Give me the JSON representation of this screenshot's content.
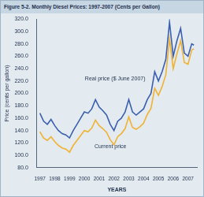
{
  "chart_data": {
    "type": "line",
    "title": "Figure 5-2.  Monthly Diesel Prices: 1997-2007 (Cents per Gallon)",
    "x_label": "YEARS",
    "y_label": "Price (cents per gallon)",
    "annotations": [
      "Real price ($ June 2007)",
      "Current price"
    ],
    "series": [
      {
        "name": "Real price ($ June 2007)",
        "color": "#3b5fae",
        "x": [
          1997,
          1997.25,
          1997.5,
          1997.75,
          1998,
          1998.25,
          1998.5,
          1998.75,
          1999,
          1999.25,
          1999.5,
          1999.75,
          2000,
          2000.25,
          2000.5,
          2000.75,
          2001,
          2001.25,
          2001.5,
          2001.75,
          2002,
          2002.25,
          2002.5,
          2002.75,
          2003,
          2003.25,
          2003.5,
          2003.75,
          2004,
          2004.25,
          2004.5,
          2004.75,
          2005,
          2005.25,
          2005.5,
          2005.75,
          2006,
          2006.25,
          2006.5,
          2006.75,
          2007,
          2007.25,
          2007.4
        ],
        "values": [
          168,
          155,
          150,
          158,
          148,
          140,
          135,
          133,
          128,
          140,
          150,
          160,
          170,
          168,
          175,
          190,
          178,
          172,
          165,
          150,
          140,
          155,
          160,
          170,
          190,
          170,
          165,
          170,
          175,
          190,
          200,
          235,
          220,
          235,
          255,
          315,
          260,
          285,
          305,
          265,
          260,
          280,
          278
        ]
      },
      {
        "name": "Current price",
        "color": "#f0b232",
        "x": [
          1997,
          1997.25,
          1997.5,
          1997.75,
          1998,
          1998.25,
          1998.5,
          1998.75,
          1999,
          1999.25,
          1999.5,
          1999.75,
          2000,
          2000.25,
          2000.5,
          2000.75,
          2001,
          2001.25,
          2001.5,
          2001.75,
          2002,
          2002.25,
          2002.5,
          2002.75,
          2003,
          2003.25,
          2003.5,
          2003.75,
          2004,
          2004.25,
          2004.5,
          2004.75,
          2005,
          2005.25,
          2005.5,
          2005.75,
          2006,
          2006.25,
          2006.5,
          2006.75,
          2007,
          2007.25,
          2007.4
        ],
        "values": [
          138,
          128,
          124,
          130,
          122,
          116,
          112,
          110,
          105,
          116,
          124,
          132,
          140,
          138,
          144,
          157,
          148,
          143,
          137,
          125,
          117,
          130,
          135,
          143,
          162,
          145,
          142,
          146,
          152,
          166,
          176,
          208,
          197,
          211,
          230,
          288,
          240,
          264,
          285,
          250,
          247,
          270,
          272
        ]
      }
    ],
    "xlim": [
      1996.8,
      2007.6
    ],
    "xticks": [
      1997,
      1998,
      1999,
      2000,
      2001,
      2002,
      2003,
      2004,
      2005,
      2006,
      2007
    ],
    "ylim": [
      80,
      320
    ],
    "yticks": [
      {
        "value": 80,
        "label": "80.0"
      },
      {
        "value": 100,
        "label": "100.0"
      },
      {
        "value": 120,
        "label": "120.0"
      },
      {
        "value": 140,
        "label": "140.0"
      },
      {
        "value": 160,
        "label": "160.0"
      },
      {
        "value": 180,
        "label": "180.0"
      },
      {
        "value": 200,
        "label": "200.0"
      },
      {
        "value": 220,
        "label": "220.0"
      },
      {
        "value": 240,
        "label": "240.0"
      },
      {
        "value": 260,
        "label": "260.0"
      },
      {
        "value": 280,
        "label": "280.0"
      },
      {
        "value": 300,
        "label": "300.0"
      },
      {
        "value": 320,
        "label": "320.0"
      }
    ],
    "grid": false,
    "legend": false
  }
}
